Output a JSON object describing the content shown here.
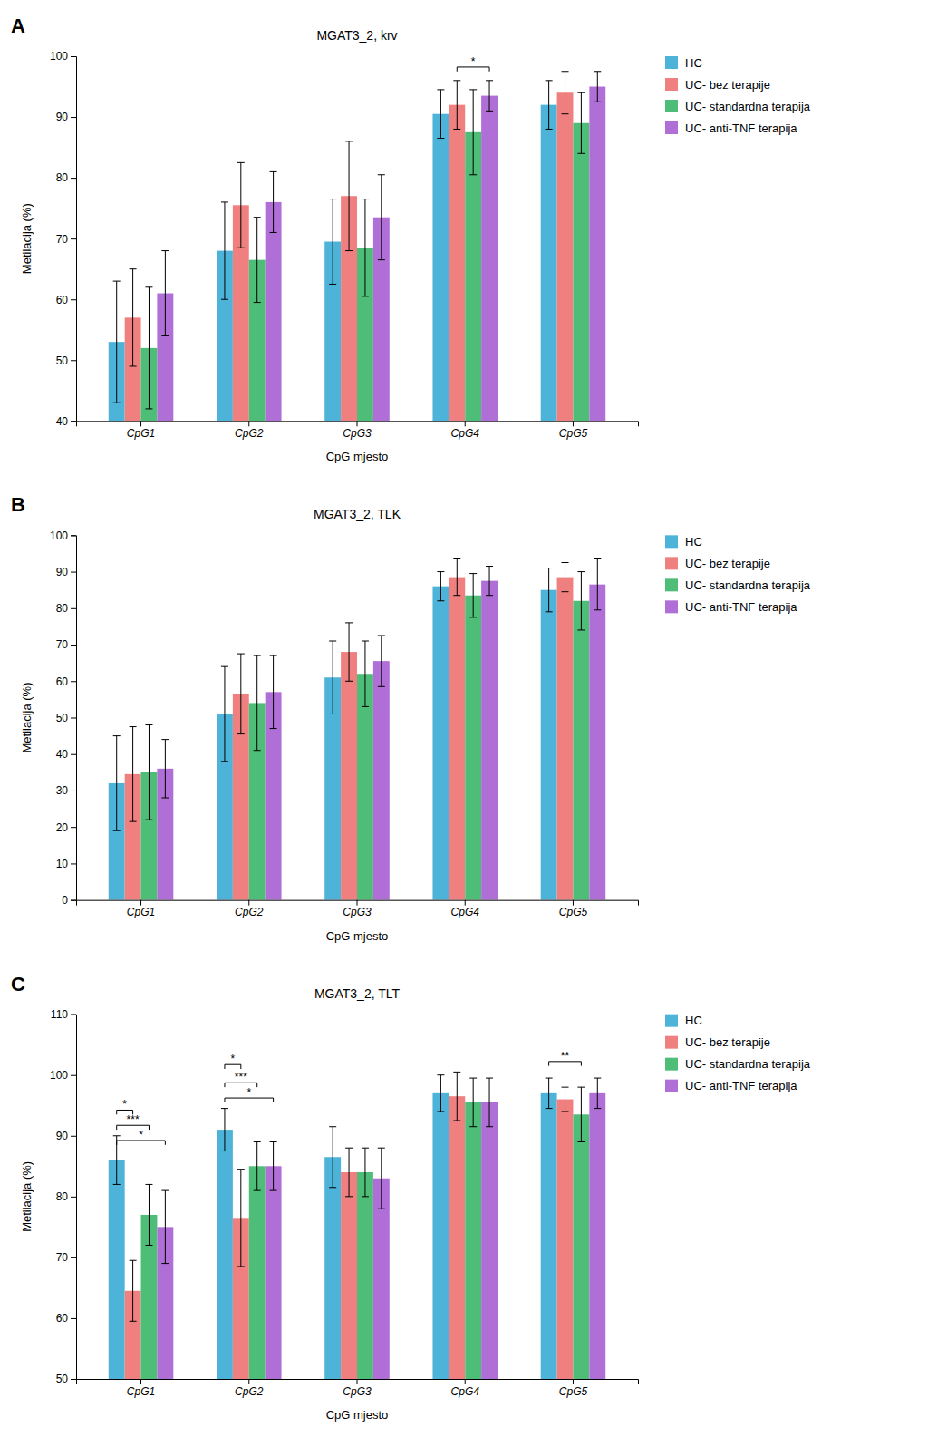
{
  "chart_data": [
    {
      "type": "bar",
      "panel_label": "A",
      "title": "MGAT3_2, krv",
      "xlabel": "CpG mjesto",
      "ylabel": "Metilacija (%)",
      "categories": [
        "CpG1",
        "CpG2",
        "CpG3",
        "CpG4",
        "CpG5"
      ],
      "series": [
        {
          "name": "HC",
          "color": "#4db3d9",
          "values": [
            53,
            68,
            69.5,
            90.5,
            92
          ],
          "errors": [
            10,
            8,
            7,
            4,
            4
          ]
        },
        {
          "name": "UC- bez terapije",
          "color": "#f08080",
          "values": [
            57,
            75.5,
            77,
            92,
            94
          ],
          "errors": [
            8,
            7,
            9,
            4,
            3.5
          ]
        },
        {
          "name": "UC- standardna terapija",
          "color": "#4dbd78",
          "values": [
            52,
            66.5,
            68.5,
            87.5,
            89
          ],
          "errors": [
            10,
            7,
            8,
            7,
            5
          ]
        },
        {
          "name": "UC- anti-TNF terapija",
          "color": "#b06fd6",
          "values": [
            61,
            76,
            73.5,
            93.5,
            95
          ],
          "errors": [
            7,
            5,
            7,
            2.5,
            2.5
          ]
        }
      ],
      "annotations": [
        {
          "category": "CpG4",
          "between": [
            "UC- bez terapije",
            "UC- anti-TNF terapija"
          ],
          "label": "*",
          "y": 97.5
        }
      ],
      "ylim": [
        40,
        100
      ],
      "yticks": [
        40,
        50,
        60,
        70,
        80,
        90,
        100
      ],
      "grid": false,
      "legend": "upper right"
    },
    {
      "type": "bar",
      "panel_label": "B",
      "title": "MGAT3_2, TLK",
      "xlabel": "CpG mjesto",
      "ylabel": "Metilacija (%)",
      "categories": [
        "CpG1",
        "CpG2",
        "CpG3",
        "CpG4",
        "CpG5"
      ],
      "series": [
        {
          "name": "HC",
          "color": "#4db3d9",
          "values": [
            32,
            51,
            61,
            86,
            85
          ],
          "errors": [
            13,
            13,
            10,
            4,
            6
          ]
        },
        {
          "name": "UC- bez terapije",
          "color": "#f08080",
          "values": [
            34.5,
            56.5,
            68,
            88.5,
            88.5
          ],
          "errors": [
            13,
            11,
            8,
            5,
            4
          ]
        },
        {
          "name": "UC- standardna terapija",
          "color": "#4dbd78",
          "values": [
            35,
            54,
            62,
            83.5,
            82
          ],
          "errors": [
            13,
            13,
            9,
            6,
            8
          ]
        },
        {
          "name": "UC- anti-TNF terapija",
          "color": "#b06fd6",
          "values": [
            36,
            57,
            65.5,
            87.5,
            86.5
          ],
          "errors": [
            8,
            10,
            7,
            4,
            7
          ]
        }
      ],
      "annotations": [],
      "ylim": [
        0,
        100
      ],
      "yticks": [
        0,
        10,
        20,
        30,
        40,
        50,
        60,
        70,
        80,
        90,
        100
      ],
      "grid": false,
      "legend": "upper right"
    },
    {
      "type": "bar",
      "panel_label": "C",
      "title": "MGAT3_2, TLT",
      "xlabel": "CpG mjesto",
      "ylabel": "Metilacija (%)",
      "categories": [
        "CpG1",
        "CpG2",
        "CpG3",
        "CpG4",
        "CpG5"
      ],
      "series": [
        {
          "name": "HC",
          "color": "#4db3d9",
          "values": [
            86,
            91,
            86.5,
            97,
            97
          ],
          "errors": [
            4,
            3.5,
            5,
            3,
            2.5
          ]
        },
        {
          "name": "UC- bez terapije",
          "color": "#f08080",
          "values": [
            64.5,
            76.5,
            84,
            96.5,
            96
          ],
          "errors": [
            5,
            8,
            4,
            4,
            2
          ]
        },
        {
          "name": "UC- standardna terapija",
          "color": "#4dbd78",
          "values": [
            77,
            85,
            84,
            95.5,
            93.5
          ],
          "errors": [
            5,
            4,
            4,
            4,
            4.5
          ]
        },
        {
          "name": "UC- anti-TNF terapija",
          "color": "#b06fd6",
          "values": [
            75,
            85,
            83,
            95.5,
            97
          ],
          "errors": [
            6,
            4,
            5,
            4,
            2.5
          ]
        }
      ],
      "annotations": [
        {
          "category": "CpG1",
          "between": [
            "HC",
            "UC- bez terapije"
          ],
          "label": "*",
          "y": 93.5
        },
        {
          "category": "CpG1",
          "between": [
            "HC",
            "UC- standardna terapija"
          ],
          "label": "***",
          "y": 91.0
        },
        {
          "category": "CpG1",
          "between": [
            "HC",
            "UC- anti-TNF terapija"
          ],
          "label": "*",
          "y": 88.5
        },
        {
          "category": "CpG2",
          "between": [
            "HC",
            "UC- bez terapije"
          ],
          "label": "*",
          "y": 101.0
        },
        {
          "category": "CpG2",
          "between": [
            "HC",
            "UC- standardna terapija"
          ],
          "label": "***",
          "y": 98.0
        },
        {
          "category": "CpG2",
          "between": [
            "HC",
            "UC- anti-TNF terapija"
          ],
          "label": "*",
          "y": 95.5
        },
        {
          "category": "CpG5",
          "between": [
            "HC",
            "UC- standardna terapija"
          ],
          "label": "**",
          "y": 101.5
        }
      ],
      "ylim": [
        50,
        110
      ],
      "yticks": [
        50,
        60,
        70,
        80,
        90,
        100,
        110
      ],
      "grid": false,
      "legend": "upper right"
    }
  ]
}
